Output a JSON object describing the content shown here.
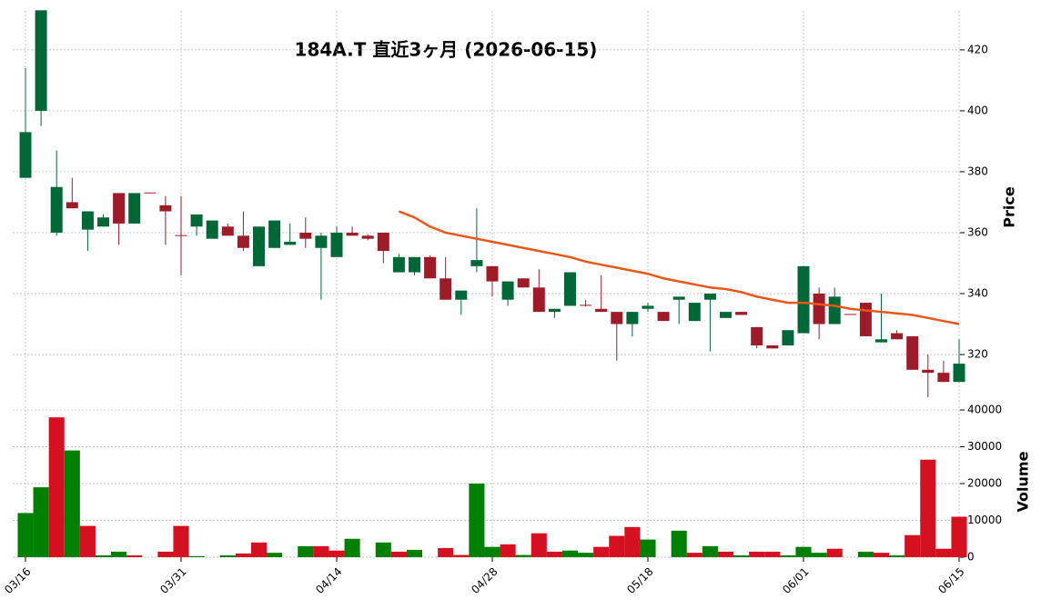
{
  "chart_data": {
    "type": "candlestick",
    "title": "184A.T  直近3ヶ月  (2026-06-15)",
    "ylabel": "Price",
    "categories": [
      "03/16",
      null,
      null,
      null,
      null,
      null,
      null,
      null,
      null,
      null,
      "03/31",
      null,
      null,
      null,
      null,
      null,
      null,
      null,
      null,
      null,
      "04/14",
      null,
      null,
      null,
      null,
      null,
      null,
      null,
      null,
      null,
      "04/28",
      null,
      null,
      null,
      null,
      null,
      null,
      null,
      null,
      null,
      "05/18",
      null,
      null,
      null,
      null,
      null,
      null,
      null,
      null,
      null,
      "06/01",
      null,
      null,
      null,
      null,
      null,
      null,
      null,
      null,
      null,
      "06/15"
    ],
    "open": [
      393,
      433,
      375,
      368,
      367,
      365,
      363,
      373,
      373,
      367,
      359,
      366,
      364,
      359,
      355,
      362,
      364,
      357,
      358,
      359,
      360,
      359,
      358,
      354,
      352,
      352,
      345,
      338,
      341,
      351,
      344,
      344,
      342,
      334,
      335,
      347,
      336,
      334,
      330,
      334,
      336,
      331,
      339,
      337,
      340,
      334,
      333,
      323,
      322,
      328,
      349,
      330,
      339,
      333,
      326,
      325,
      325,
      315,
      314,
      311,
      317
    ],
    "high": [
      414,
      433,
      387,
      378,
      367,
      366,
      373,
      373,
      373.2,
      372,
      372,
      366,
      364,
      363,
      367,
      362,
      364,
      363,
      365,
      360,
      362,
      362,
      359.5,
      360,
      353,
      352,
      352.5,
      352,
      341,
      368,
      349,
      344,
      345,
      348,
      335,
      347,
      338,
      346,
      334,
      334,
      337,
      334,
      339,
      337,
      340,
      334,
      334,
      329,
      323,
      328,
      349,
      342,
      342,
      333.3,
      337,
      340,
      328,
      326,
      320,
      318,
      325
    ],
    "low": [
      378,
      395,
      359,
      368,
      354,
      362,
      356,
      363,
      373,
      356,
      346,
      359,
      358,
      359,
      354,
      349,
      355,
      356,
      355,
      338,
      352,
      359,
      357.5,
      350,
      347,
      346,
      345,
      338,
      333,
      347,
      339,
      336,
      342,
      334,
      332,
      336,
      335.8,
      334,
      318,
      326,
      334,
      331,
      330,
      331,
      321,
      332,
      333,
      322,
      322,
      323,
      327,
      325,
      330,
      333,
      326,
      324,
      325,
      315,
      306,
      311,
      311
    ],
    "close": [
      378,
      400,
      360,
      370,
      361,
      362,
      373,
      363,
      373.2,
      369,
      359.2,
      362,
      358,
      362,
      359,
      349,
      355,
      356,
      360,
      355,
      352,
      360,
      359,
      360,
      347,
      347,
      352,
      345,
      338,
      349,
      349,
      338,
      345,
      342,
      334,
      336,
      336.3,
      335,
      334,
      330,
      335,
      334,
      338,
      331,
      338,
      332,
      334,
      329,
      323,
      323,
      327,
      340,
      330,
      333.3,
      337,
      324,
      327,
      326,
      315,
      314,
      311
    ],
    "up_color": "#9e1b2a",
    "down_color": "#006837",
    "ylim": [
      303.6,
      432.8
    ],
    "yticks": [
      320,
      340,
      360,
      380,
      400,
      420
    ],
    "grid": true,
    "ma": {
      "color": "#e8581a",
      "values": [
        null,
        null,
        null,
        null,
        null,
        null,
        null,
        null,
        null,
        null,
        null,
        null,
        null,
        null,
        null,
        null,
        null,
        null,
        null,
        null,
        null,
        null,
        null,
        null,
        367,
        365,
        362,
        360,
        359,
        358,
        357,
        356,
        355,
        354,
        353,
        352,
        350.5,
        349.5,
        348.5,
        347.5,
        346.5,
        345,
        344,
        343,
        342,
        341.5,
        340.5,
        339,
        338,
        337,
        337,
        336.5,
        336,
        335,
        334.5,
        334,
        333.5,
        333,
        332,
        331,
        330
      ]
    },
    "volume": {
      "ylabel": "Volume",
      "up_color": "#008000",
      "down_color": "#d51020",
      "ylim": [
        0,
        41000
      ],
      "yticks": [
        0,
        10000,
        20000,
        30000,
        40000
      ],
      "values": [
        12000,
        19000,
        38000,
        29000,
        8500,
        500,
        1500,
        500,
        0,
        1500,
        8500,
        300,
        0,
        500,
        1000,
        4000,
        1200,
        0,
        3000,
        3000,
        1800,
        5000,
        0,
        4000,
        1500,
        2000,
        0,
        2500,
        600,
        20000,
        2800,
        3500,
        600,
        6500,
        1500,
        1800,
        1200,
        2800,
        5800,
        8200,
        4800,
        0,
        7200,
        1200,
        3000,
        1500,
        500,
        1500,
        1500,
        500,
        2800,
        1200,
        2300,
        0,
        1500,
        1200,
        500,
        6000,
        26500,
        2300,
        11000
      ]
    }
  }
}
